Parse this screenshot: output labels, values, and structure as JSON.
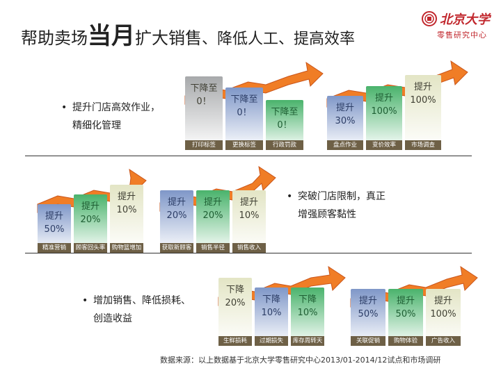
{
  "title": {
    "part1": "帮助卖场",
    "part2": "当月",
    "part3": "扩大销售",
    "part4": "、降低人工、提高效率"
  },
  "logo": {
    "name": "北京大学",
    "subtitle": "零售研究中心"
  },
  "bullets": [
    {
      "line1": "提升门店高效作业，",
      "line2": "精细化管理"
    },
    {
      "line1": "突破门店限制，真正",
      "line2": "增强顾客黏性"
    },
    {
      "line1": "增加销售、降低损耗、",
      "line2": "创造收益"
    }
  ],
  "colors": {
    "gray": "#a7a9ab",
    "blue": "#7f97c8",
    "green": "#4ab36c",
    "cream": "#e3e5c5",
    "red": "#c1272d",
    "label": "#6e6046",
    "arrow": "#f07d26"
  },
  "groups": [
    {
      "id": "g1",
      "bars": [
        {
          "text": "下降至\n0！",
          "label": "打印标签",
          "color": "gray"
        },
        {
          "text": "下降至\n0！",
          "label": "更换标签",
          "color": "blue"
        },
        {
          "text": "下降至\n0！",
          "label": "行政罚款",
          "color": "green"
        }
      ]
    },
    {
      "id": "g2",
      "bars": [
        {
          "text": "提升\n30%",
          "label": "盘点作业",
          "color": "blue"
        },
        {
          "text": "提升\n100%",
          "label": "变价效率",
          "color": "green"
        },
        {
          "text": "提升\n100%",
          "label": "市场调查",
          "color": "cream"
        }
      ]
    },
    {
      "id": "g3",
      "bars": [
        {
          "text": "提升\n50%",
          "label": "精准营销",
          "color": "blue"
        },
        {
          "text": "提升\n20%",
          "label": "顾客回头率",
          "color": "green"
        },
        {
          "text": "提升\n10%",
          "label": "购物篮增加",
          "color": "cream"
        }
      ]
    },
    {
      "id": "g4",
      "bars": [
        {
          "text": "提升\n20%",
          "label": "获取新顾客",
          "color": "blue"
        },
        {
          "text": "提升\n20%",
          "label": "销售半径",
          "color": "green"
        },
        {
          "text": "提升\n10%",
          "label": "销售收入",
          "color": "cream"
        }
      ]
    },
    {
      "id": "g5",
      "bars": [
        {
          "text": "下降\n20%",
          "label": "生鲜损耗",
          "color": "cream"
        },
        {
          "text": "下降\n10%",
          "label": "过期损失",
          "color": "blue"
        },
        {
          "text": "下降\n10%",
          "label": "库存周转天",
          "color": "green"
        }
      ]
    },
    {
      "id": "g6",
      "bars": [
        {
          "text": "提升\n50%",
          "label": "关联促销",
          "color": "blue"
        },
        {
          "text": "提升\n50%",
          "label": "购物体验",
          "color": "green"
        },
        {
          "text": "提升\n100%",
          "label": "广告收入",
          "color": "cream"
        }
      ]
    }
  ],
  "source": "数据来源：以上数据基于北京大学零售研究中心2013/01-2014/12试点和市场调研"
}
